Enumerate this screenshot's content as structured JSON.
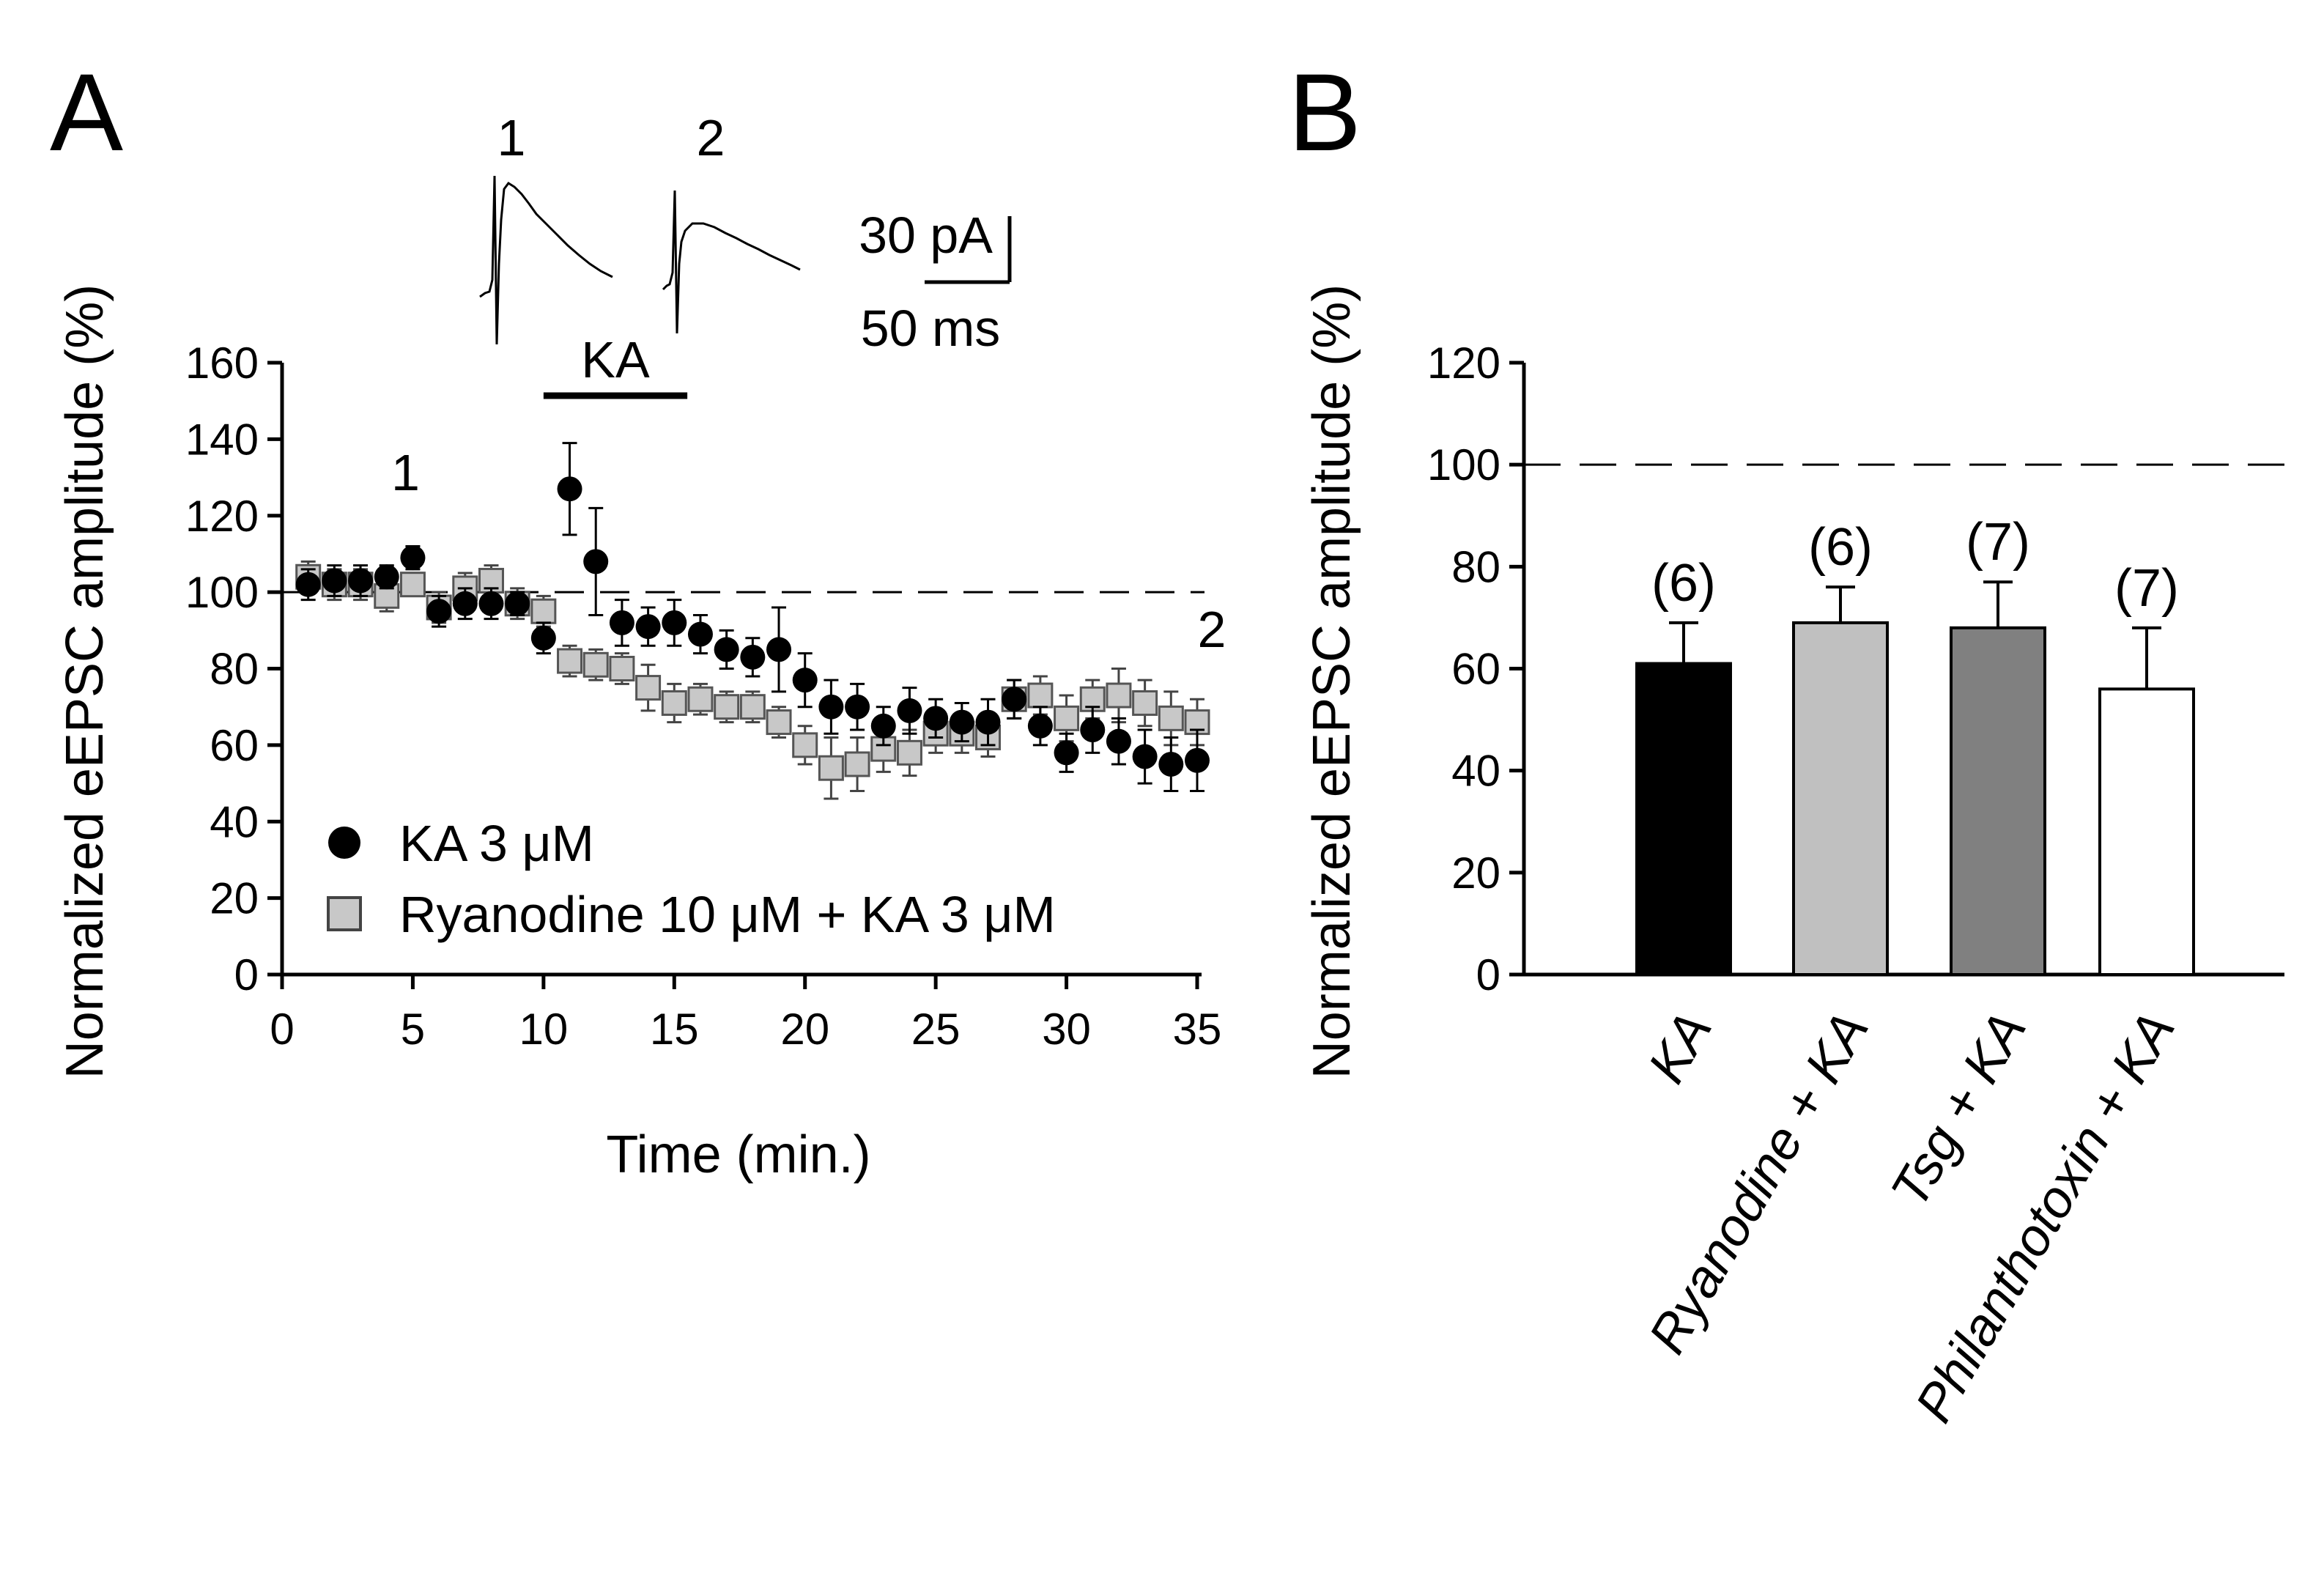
{
  "panels": {
    "a_letter": "A",
    "b_letter": "B"
  },
  "chart_data": [
    {
      "type": "scatter",
      "panel": "A",
      "xlabel": "Time (min.)",
      "ylabel": "Normalized eEPSC amplitude (%)",
      "xlim": [
        0,
        35
      ],
      "ylim": [
        0,
        160
      ],
      "xticks": [
        0,
        5,
        10,
        15,
        20,
        25,
        30,
        35
      ],
      "yticks": [
        0,
        20,
        40,
        60,
        80,
        100,
        120,
        140,
        160
      ],
      "reference_line": 100,
      "drug_bar": {
        "label": "KA",
        "start": 10,
        "end": 15.5
      },
      "time_markers": [
        {
          "label": "1",
          "x": 5
        },
        {
          "label": "2",
          "x": 35
        }
      ],
      "trace_labels": [
        "1",
        "2"
      ],
      "scale_bar": {
        "current": "30 pA",
        "time": "50 ms"
      },
      "series": [
        {
          "name": "KA 3 μM",
          "marker": "circle",
          "color": "#000000",
          "x": [
            1,
            2,
            3,
            4,
            5,
            6,
            7,
            8,
            9,
            10,
            11,
            12,
            13,
            14,
            15,
            16,
            17,
            18,
            19,
            20,
            21,
            22,
            23,
            24,
            25,
            26,
            27,
            28,
            29,
            30,
            31,
            32,
            33,
            34,
            35
          ],
          "y": [
            102,
            103,
            103,
            104,
            109,
            95,
            97,
            97,
            97,
            88,
            127,
            108,
            92,
            91,
            92,
            89,
            85,
            83,
            85,
            77,
            70,
            70,
            65,
            69,
            67,
            66,
            66,
            72,
            65,
            58,
            64,
            61,
            57,
            55,
            56
          ],
          "err": [
            4,
            4,
            4,
            3,
            3,
            4,
            4,
            4,
            3,
            4,
            12,
            14,
            6,
            5,
            6,
            5,
            5,
            5,
            11,
            7,
            7,
            6,
            5,
            6,
            5,
            5,
            6,
            5,
            5,
            5,
            6,
            6,
            7,
            7,
            8
          ]
        },
        {
          "name": "Ryanodine 10 μM + KA 3 μM",
          "marker": "square",
          "color": "#c8c8c8",
          "x": [
            1,
            2,
            3,
            4,
            5,
            6,
            7,
            8,
            9,
            10,
            11,
            12,
            13,
            14,
            15,
            16,
            17,
            18,
            19,
            20,
            21,
            22,
            23,
            24,
            25,
            26,
            27,
            28,
            29,
            30,
            31,
            32,
            33,
            34,
            35
          ],
          "y": [
            104,
            102,
            102,
            99,
            102,
            96,
            101,
            103,
            97,
            95,
            82,
            81,
            80,
            75,
            71,
            72,
            70,
            70,
            66,
            60,
            54,
            55,
            59,
            58,
            63,
            63,
            62,
            72,
            73,
            67,
            72,
            73,
            71,
            67,
            66
          ],
          "err": [
            4,
            4,
            4,
            4,
            3,
            4,
            4,
            4,
            4,
            4,
            4,
            4,
            4,
            6,
            5,
            4,
            4,
            4,
            4,
            5,
            8,
            7,
            6,
            6,
            5,
            5,
            5,
            5,
            5,
            6,
            5,
            7,
            6,
            7,
            6
          ]
        }
      ]
    },
    {
      "type": "bar",
      "panel": "B",
      "ylabel": "Normalized eEPSC amplitude (%)",
      "ylim": [
        0,
        120
      ],
      "yticks": [
        0,
        20,
        40,
        60,
        80,
        100,
        120
      ],
      "reference_line": 100,
      "categories": [
        "KA",
        "Ryanodine + KA",
        "Tsg + KA",
        "Philanthotoxin + KA"
      ],
      "values": [
        61,
        69,
        68,
        56
      ],
      "errors": [
        8,
        7,
        9,
        12
      ],
      "n": [
        "(6)",
        "(6)",
        "(7)",
        "(7)"
      ],
      "colors": [
        "#000000",
        "#c0c0c0",
        "#808080",
        "#ffffff"
      ]
    }
  ]
}
